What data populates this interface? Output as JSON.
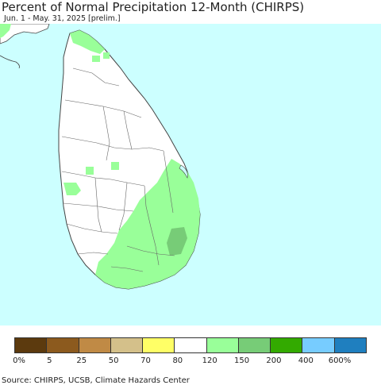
{
  "title": "Percent of Normal Precipitation 12-Month (CHIRPS)",
  "subtitle": "Jun. 1 - May. 31, 2025 [prelim.]",
  "source": "Source: CHIRPS, UCSB, Climate Hazards Center",
  "colors": {
    "ocean": "#ccffff",
    "land_normal": "#ffffff",
    "above_normal": "#99ff99",
    "much_above": "#77cc77",
    "border": "#444444"
  },
  "legend": {
    "colors": [
      "#5c3a0e",
      "#8c5a1e",
      "#c08a45",
      "#d4c08a",
      "#ffff66",
      "#ffffff",
      "#99ff99",
      "#77cc77",
      "#33aa00",
      "#77ccff",
      "#1f7fbf"
    ],
    "ticks": [
      "0%",
      "5",
      "25",
      "50",
      "70",
      "80",
      "120",
      "150",
      "200",
      "400",
      "600%"
    ]
  }
}
